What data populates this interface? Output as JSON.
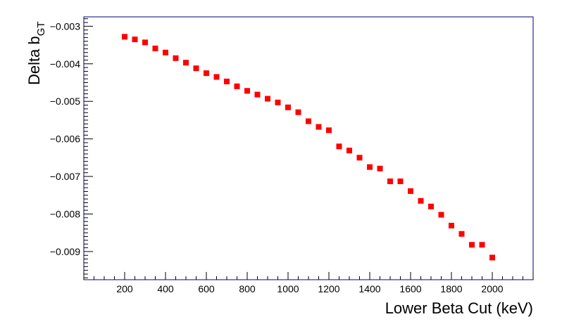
{
  "chart_data": {
    "type": "scatter",
    "xlabel": "Lower Beta Cut (keV)",
    "ylabel": {
      "main": "Delta b",
      "subscript": "GT"
    },
    "xlim": [
      0,
      2200
    ],
    "ylim": [
      -0.00975,
      -0.00275
    ],
    "x_ticks": [
      200,
      400,
      600,
      800,
      1000,
      1200,
      1400,
      1600,
      1800,
      2000
    ],
    "y_ticks": [
      -0.003,
      -0.004,
      -0.005,
      -0.006,
      -0.007,
      -0.008,
      -0.009
    ],
    "y_tick_labels": [
      "−0.003",
      "−0.004",
      "−0.005",
      "−0.006",
      "−0.007",
      "−0.008",
      "−0.009"
    ],
    "grid": false,
    "marker_color": "#ff0000",
    "frame_color": "#000080",
    "series": [
      {
        "x": [
          200,
          250,
          300,
          350,
          400,
          450,
          500,
          550,
          600,
          650,
          700,
          750,
          800,
          850,
          900,
          950,
          1000,
          1050,
          1100,
          1150,
          1200,
          1250,
          1300,
          1350,
          1400,
          1450,
          1500,
          1550,
          1600,
          1650,
          1700,
          1750,
          1800,
          1850,
          1900,
          1950,
          2000
        ],
        "y": [
          -0.00328,
          -0.00335,
          -0.00343,
          -0.00359,
          -0.0037,
          -0.00385,
          -0.00397,
          -0.00412,
          -0.00425,
          -0.00435,
          -0.00447,
          -0.0046,
          -0.00472,
          -0.00482,
          -0.00493,
          -0.00503,
          -0.00516,
          -0.00529,
          -0.00553,
          -0.00568,
          -0.00577,
          -0.0062,
          -0.00631,
          -0.0065,
          -0.00675,
          -0.00679,
          -0.00713,
          -0.00713,
          -0.00739,
          -0.00765,
          -0.0078,
          -0.00802,
          -0.00831,
          -0.00853,
          -0.00882,
          -0.00882,
          -0.00916
        ]
      }
    ]
  }
}
